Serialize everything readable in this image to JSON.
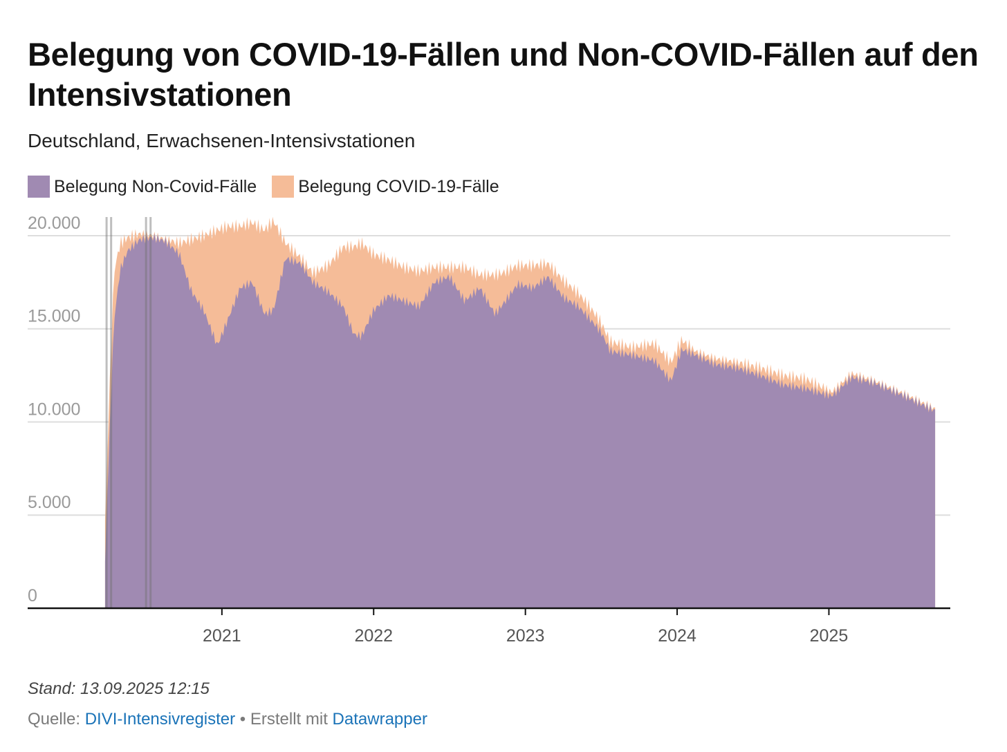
{
  "chart_data": {
    "type": "area",
    "stacked": true,
    "title": "Belegung von COVID-19-Fällen und Non-COVID-Fällen auf den Intensivstationen",
    "subtitle": "Deutschland, Erwachsenen-Intensivstationen",
    "x_axis": {
      "tick_labels": [
        "2021",
        "2022",
        "2023",
        "2024",
        "2025"
      ],
      "tick_values": [
        2021.0,
        2022.0,
        2023.0,
        2024.0,
        2025.0
      ],
      "range": [
        2019.72,
        2025.8
      ]
    },
    "y_axis": {
      "tick_labels": [
        "0",
        "5.000",
        "10.000",
        "15.000",
        "20.000"
      ],
      "tick_values": [
        0,
        5000,
        10000,
        15000,
        20000
      ],
      "range": [
        0,
        21000
      ]
    },
    "colors": {
      "non_covid": "#a08ab2",
      "covid": "#f5bc98"
    },
    "series": [
      {
        "name": "Belegung Non-Covid-Fälle",
        "x": [
          2020.23,
          2020.26,
          2020.29,
          2020.33,
          2020.38,
          2020.46,
          2020.55,
          2020.63,
          2020.72,
          2020.8,
          2020.88,
          2020.97,
          2021.04,
          2021.12,
          2021.2,
          2021.28,
          2021.34,
          2021.42,
          2021.52,
          2021.6,
          2021.7,
          2021.8,
          2021.87,
          2021.92,
          2022.0,
          2022.1,
          2022.2,
          2022.3,
          2022.4,
          2022.5,
          2022.6,
          2022.7,
          2022.8,
          2022.85,
          2022.95,
          2023.05,
          2023.15,
          2023.25,
          2023.35,
          2023.45,
          2023.5,
          2023.56,
          2023.7,
          2023.85,
          2023.96,
          2024.03,
          2024.12,
          2024.25,
          2024.4,
          2024.55,
          2024.7,
          2024.85,
          2024.97,
          2025.02,
          2025.15,
          2025.3,
          2025.5,
          2025.7
        ],
        "values": [
          2500,
          9500,
          15500,
          18200,
          19200,
          19800,
          19900,
          19700,
          19000,
          17000,
          16000,
          14100,
          15500,
          17200,
          17500,
          15800,
          16000,
          18800,
          18500,
          17500,
          17000,
          16200,
          14700,
          14600,
          16000,
          16800,
          16500,
          16200,
          17500,
          17800,
          16500,
          17200,
          15800,
          16300,
          17400,
          17200,
          17800,
          16700,
          16200,
          15300,
          14800,
          13800,
          13600,
          13300,
          12200,
          13900,
          13600,
          13100,
          12900,
          12500,
          12000,
          11800,
          11500,
          11400,
          12400,
          12100,
          11400,
          10600
        ]
      },
      {
        "name": "Belegung COVID-19-Fälle",
        "x": [
          2020.23,
          2020.26,
          2020.29,
          2020.33,
          2020.38,
          2020.46,
          2020.55,
          2020.63,
          2020.72,
          2020.8,
          2020.88,
          2020.97,
          2021.04,
          2021.12,
          2021.2,
          2021.28,
          2021.34,
          2021.42,
          2021.52,
          2021.6,
          2021.7,
          2021.8,
          2021.87,
          2021.92,
          2022.0,
          2022.1,
          2022.2,
          2022.3,
          2022.4,
          2022.5,
          2022.6,
          2022.7,
          2022.8,
          2022.85,
          2022.95,
          2023.05,
          2023.15,
          2023.25,
          2023.35,
          2023.45,
          2023.5,
          2023.56,
          2023.7,
          2023.85,
          2023.96,
          2024.03,
          2024.12,
          2024.25,
          2024.4,
          2024.55,
          2024.7,
          2024.85,
          2024.97,
          2025.02,
          2025.15,
          2025.3,
          2025.5,
          2025.7
        ],
        "values": [
          2200,
          2400,
          2600,
          1400,
          700,
          300,
          100,
          100,
          600,
          2800,
          4000,
          6200,
          5000,
          3300,
          3200,
          4500,
          4800,
          800,
          300,
          500,
          1400,
          3200,
          4700,
          5000,
          3000,
          1900,
          1800,
          1900,
          800,
          500,
          1800,
          700,
          2100,
          1700,
          1000,
          1200,
          700,
          900,
          700,
          600,
          500,
          500,
          400,
          900,
          1000,
          500,
          200,
          300,
          300,
          400,
          500,
          500,
          300,
          200,
          200,
          100,
          100,
          100
        ]
      }
    ]
  },
  "legend": {
    "non_covid_label": "Belegung Non-Covid-Fälle",
    "covid_label": "Belegung COVID-19-Fälle"
  },
  "footer": {
    "stand": "Stand: 13.09.2025 12:15",
    "source_prefix": "Quelle: ",
    "source_link": "DIVI-Intensivregister",
    "separator": " • Erstellt mit ",
    "tool_link": "Datawrapper"
  }
}
